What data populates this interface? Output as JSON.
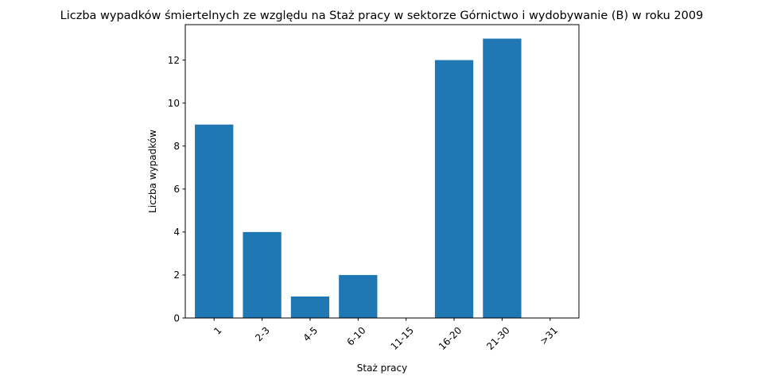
{
  "chart_data": {
    "type": "bar",
    "title": "Liczba wypadków śmiertelnych ze względu na Staż pracy w sektorze Górnictwo i wydobywanie (B)   w roku 2009",
    "xlabel": "Staż pracy",
    "ylabel": "Liczba wypadków",
    "categories": [
      "1",
      "2-3",
      "4-5",
      "6-10",
      "11-15",
      "16-20",
      "21-30",
      ">31"
    ],
    "values": [
      9,
      4,
      1,
      2,
      0,
      12,
      13,
      0
    ],
    "ylim": [
      0,
      13.65
    ],
    "yticks": [
      0,
      2,
      4,
      6,
      8,
      10,
      12
    ],
    "xtick_rotation": 45,
    "grid": false,
    "legend": "none",
    "bar_color": "#1f77b4"
  }
}
